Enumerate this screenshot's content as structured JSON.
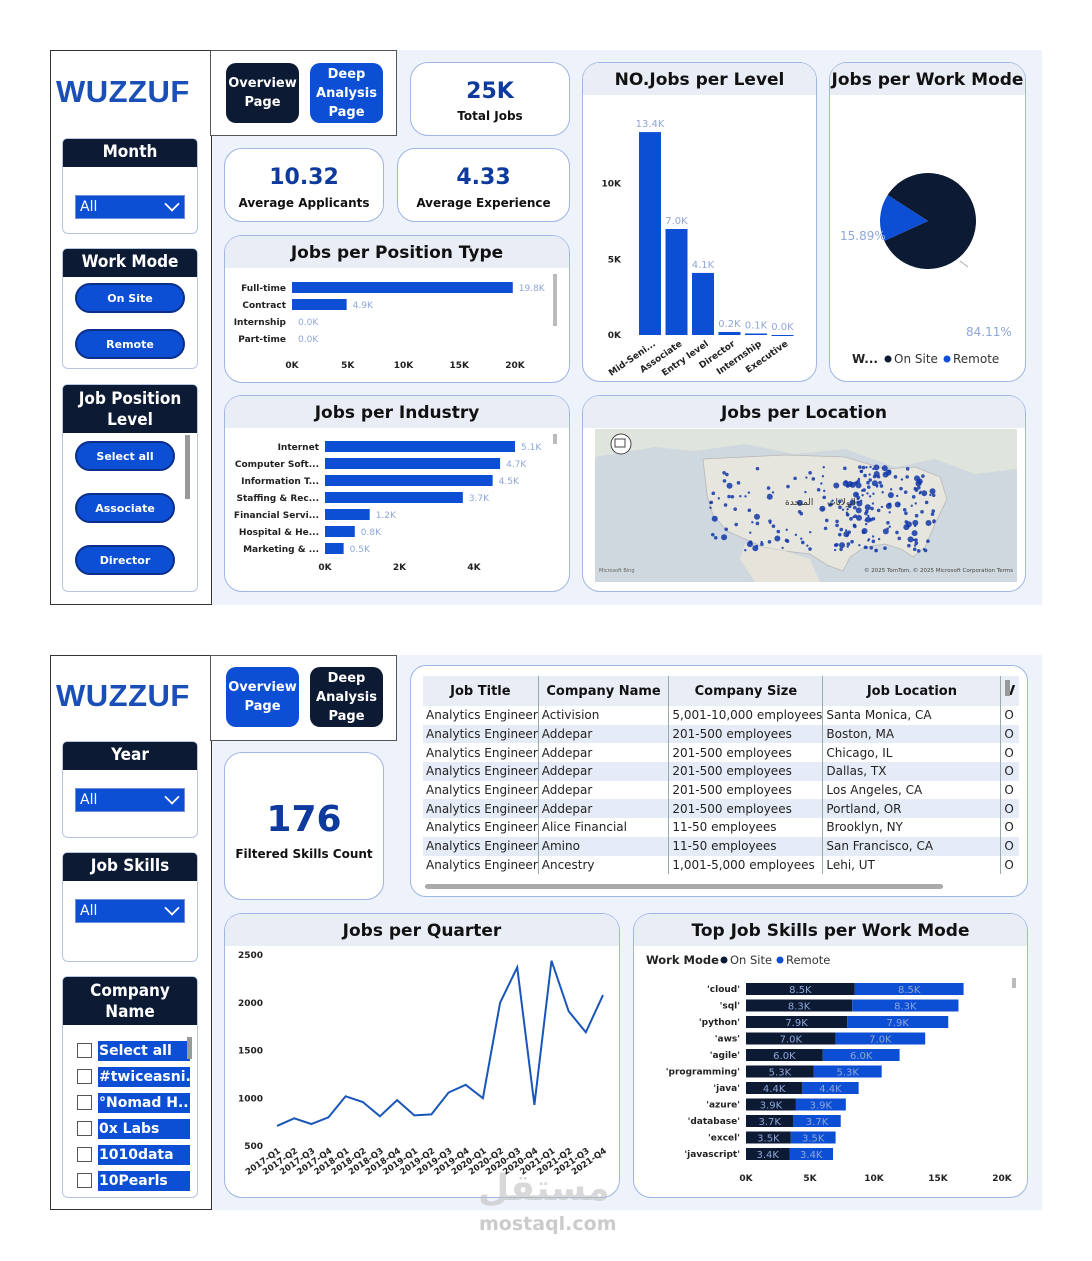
{
  "top": {
    "brand": "WUZZUF",
    "nav": {
      "overview": "Overview Page",
      "deep": "Deep Analysis Page"
    },
    "slicers": {
      "month": {
        "title": "Month",
        "value": "All"
      },
      "work_mode": {
        "title": "Work Mode",
        "options": [
          "On Site",
          "Remote"
        ]
      },
      "job_level": {
        "title": "Job Position Level",
        "options": [
          "Select all",
          "Associate",
          "Director"
        ]
      }
    },
    "kpis": {
      "total_jobs": {
        "value": "25K",
        "label": "Total Jobs"
      },
      "avg_applicants": {
        "value": "10.32",
        "label": "Average Applicants"
      },
      "avg_experience": {
        "value": "4.33",
        "label": "Average Experience"
      }
    },
    "position_type": {
      "title": "Jobs per Position Type",
      "chart_data": {
        "type": "bar",
        "categories": [
          "Full-time",
          "Contract",
          "Internship",
          "Part-time"
        ],
        "values": [
          19.8,
          4.9,
          0.0,
          0.0
        ],
        "labels": [
          "19.8K",
          "4.9K",
          "0.0K",
          "0.0K"
        ],
        "xticks": [
          "0K",
          "5K",
          "10K",
          "15K",
          "20K"
        ],
        "xlim": [
          0,
          20
        ]
      }
    },
    "level": {
      "title": "NO.Jobs per Level",
      "chart_data": {
        "type": "bar",
        "categories": [
          "Mid-Seni...",
          "Associate",
          "Entry level",
          "Director",
          "Internship",
          "Executive"
        ],
        "values": [
          13.4,
          7.0,
          4.1,
          0.2,
          0.1,
          0.0
        ],
        "labels": [
          "13.4K",
          "7.0K",
          "4.1K",
          "0.2K",
          "0.1K",
          "0.0K"
        ],
        "yticks": [
          "0K",
          "5K",
          "10K"
        ],
        "ylim": [
          0,
          14
        ]
      }
    },
    "work_mode_pie": {
      "title": "Jobs per Work Mode",
      "chart_data": {
        "type": "pie",
        "labels": [
          "On Site",
          "Remote"
        ],
        "values": [
          84.11,
          15.89
        ],
        "value_labels": [
          "84.11%",
          "15.89%"
        ],
        "legend_title": "W...",
        "colors": [
          "#0c1a33",
          "#0d4fd4"
        ]
      }
    },
    "industry": {
      "title": "Jobs per Industry",
      "chart_data": {
        "type": "bar",
        "categories": [
          "Internet",
          "Computer Soft...",
          "Information T...",
          "Staffing & Rec...",
          "Financial Servi...",
          "Hospital & He...",
          "Marketing & ..."
        ],
        "values": [
          5.1,
          4.7,
          4.5,
          3.7,
          1.2,
          0.8,
          0.5
        ],
        "labels": [
          "5.1K",
          "4.7K",
          "4.5K",
          "3.7K",
          "1.2K",
          "0.8K",
          "0.5K"
        ],
        "xticks": [
          "0K",
          "2K",
          "4K"
        ],
        "xlim": [
          0,
          5.6
        ]
      }
    },
    "location": {
      "title": "Jobs per Location",
      "map_labels": [
        "المتحدة",
        "الولايات"
      ],
      "attribution": "© 2025 TomTom, © 2025 Microsoft Corporation Terms",
      "brand": "Microsoft Bing"
    }
  },
  "bottom": {
    "brand": "WUZZUF",
    "nav": {
      "overview": "Overview Page",
      "deep": "Deep Analysis Page"
    },
    "slicers": {
      "year": {
        "title": "Year",
        "value": "All"
      },
      "skills": {
        "title": "Job Skills",
        "value": "All"
      },
      "company": {
        "title": "Company Name",
        "options": [
          "Select all",
          "#twiceasni...",
          "°Nomad H...",
          "0x Labs",
          "1010data",
          "10Pearls"
        ]
      }
    },
    "kpi": {
      "value": "176",
      "label": "Filtered Skills Count"
    },
    "table": {
      "headers": [
        "Job Title",
        "Company Name",
        "Company Size",
        "Job Location",
        "V"
      ],
      "rows": [
        [
          "Analytics Engineer",
          "Activision",
          "5,001-10,000 employees",
          "Santa Monica, CA",
          "O"
        ],
        [
          "Analytics Engineer",
          "Addepar",
          "201-500 employees",
          "Boston, MA",
          "O"
        ],
        [
          "Analytics Engineer",
          "Addepar",
          "201-500 employees",
          "Chicago, IL",
          "O"
        ],
        [
          "Analytics Engineer",
          "Addepar",
          "201-500 employees",
          "Dallas, TX",
          "O"
        ],
        [
          "Analytics Engineer",
          "Addepar",
          "201-500 employees",
          "Los Angeles, CA",
          "O"
        ],
        [
          "Analytics Engineer",
          "Addepar",
          "201-500 employees",
          "Portland, OR",
          "O"
        ],
        [
          "Analytics Engineer",
          "Alice Financial",
          "11-50 employees",
          "Brooklyn, NY",
          "O"
        ],
        [
          "Analytics Engineer",
          "Amino",
          "11-50 employees",
          "San Francisco, CA",
          "O"
        ],
        [
          "Analytics Engineer",
          "Ancestry",
          "1,001-5,000 employees",
          "Lehi, UT",
          "O"
        ]
      ]
    },
    "quarter": {
      "title": "Jobs per Quarter",
      "chart_data": {
        "type": "line",
        "x": [
          "2017-Q1",
          "2017-Q2",
          "2017-Q3",
          "2017-Q4",
          "2018-Q1",
          "2018-Q2",
          "2018-Q3",
          "2018-Q4",
          "2019-Q1",
          "2019-Q2",
          "2019-Q3",
          "2019-Q4",
          "2020-Q1",
          "2020-Q2",
          "2020-Q3",
          "2020-Q4",
          "2021-Q1",
          "2021-Q2",
          "2021-Q3",
          "2021-Q4"
        ],
        "values": [
          700,
          780,
          720,
          790,
          1010,
          950,
          800,
          970,
          810,
          820,
          1050,
          1130,
          990,
          1990,
          2360,
          920,
          2430,
          1900,
          1680,
          2070
        ],
        "yticks": [
          "500",
          "1000",
          "1500",
          "2000",
          "2500"
        ],
        "ylim": [
          500,
          2500
        ],
        "color": "#1a56b8"
      }
    },
    "skills_chart": {
      "title": "Top Job Skills per Work Mode",
      "legend_title": "Work Mode",
      "legend": [
        "On Site",
        "Remote"
      ],
      "chart_data": {
        "type": "bar",
        "stacked": true,
        "categories": [
          "'cloud'",
          "'sql'",
          "'python'",
          "'aws'",
          "'agile'",
          "'programming'",
          "'java'",
          "'azure'",
          "'database'",
          "'excel'",
          "'javascript'"
        ],
        "series": [
          {
            "name": "On Site",
            "values": [
              8.5,
              8.3,
              7.9,
              7.0,
              6.0,
              5.3,
              4.4,
              3.9,
              3.7,
              3.5,
              3.4
            ],
            "labels": [
              "8.5K",
              "8.3K",
              "7.9K",
              "7.0K",
              "6.0K",
              "5.3K",
              "4.4K",
              "3.9K",
              "3.7K",
              "3.5K",
              "3.4K"
            ]
          },
          {
            "name": "Remote",
            "values": [
              8.5,
              8.3,
              7.9,
              7.0,
              6.0,
              5.3,
              4.4,
              3.9,
              3.7,
              3.5,
              3.4
            ],
            "labels": [
              "8.5K",
              "8.3K",
              "7.9K",
              "7.0K",
              "6.0K",
              "5.3K",
              "4.4K",
              "3.9K",
              "3.7K",
              "3.5K",
              "3.4K"
            ]
          }
        ],
        "xticks": [
          "0K",
          "5K",
          "10K",
          "15K",
          "20K"
        ],
        "xlim": [
          0,
          20
        ],
        "colors": [
          "#0c1a33",
          "#0d4fd4"
        ]
      }
    },
    "watermark": {
      "arabic": "مستقل",
      "latin": "mostaql.com"
    }
  }
}
